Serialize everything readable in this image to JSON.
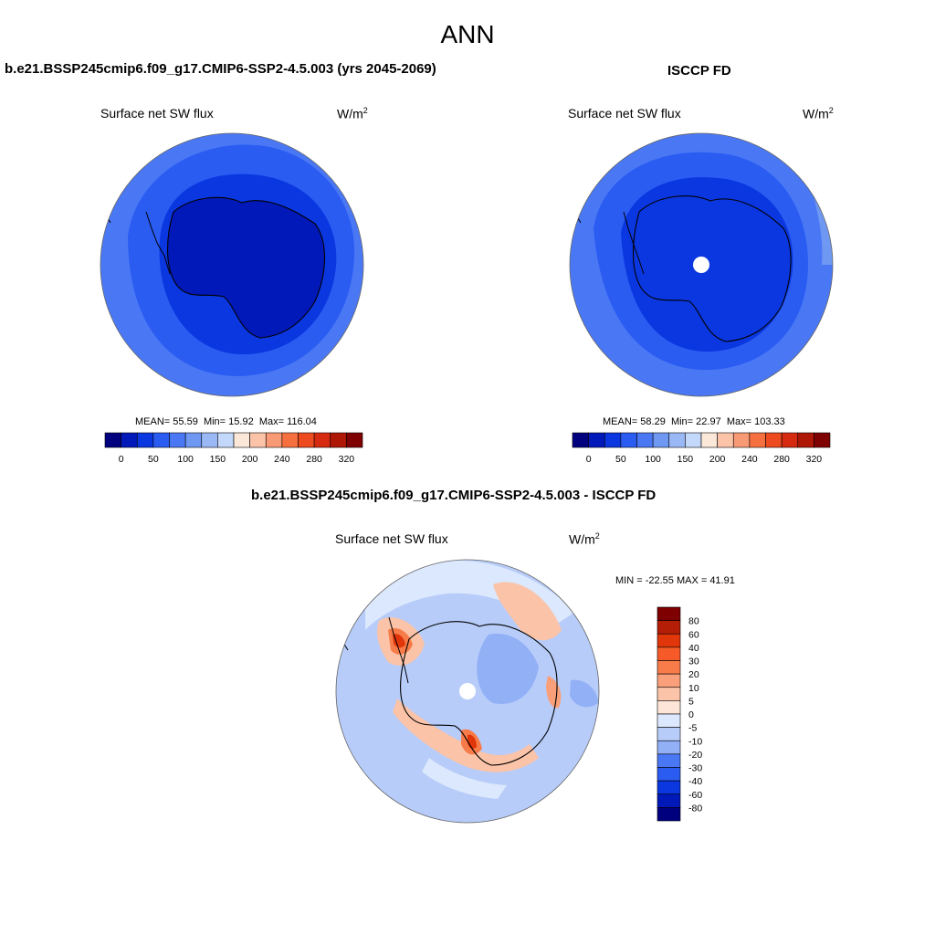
{
  "title": "ANN",
  "colors": {
    "hbar": [
      "#00007f",
      "#0019b8",
      "#0a37e0",
      "#2a5cf2",
      "#4a78f5",
      "#6f98f3",
      "#9ab8f6",
      "#c4d8fb",
      "#fbe8d8",
      "#fbc4a8",
      "#f99a76",
      "#f6703f",
      "#ee4a1f",
      "#d52a10",
      "#ae1605",
      "#7f0000"
    ],
    "vbar": [
      "#7f0000",
      "#b41e06",
      "#e0360a",
      "#f55a28",
      "#f77c4a",
      "#f9a07a",
      "#fbc3a8",
      "#fde6d8",
      "#dbe8fd",
      "#b7ccf9",
      "#92b0f6",
      "#4a78f5",
      "#2a5cf2",
      "#0a37e0",
      "#0019b8",
      "#00007f"
    ]
  },
  "panels": {
    "top_left": {
      "title": "b.e21.BSSP245cmip6.f09_g17.CMIP6-SSP2-4.5.003 (yrs 2045-2069)",
      "field": "Surface net SW flux",
      "unit": "W/m",
      "unit_exp": "2",
      "stats": {
        "mean_label": "MEAN=",
        "mean": "55.59",
        "min_label": "Min=",
        "min": "15.92",
        "max_label": "Max=",
        "max": "116.04"
      }
    },
    "top_right": {
      "title": "ISCCP FD",
      "field": "Surface net SW flux",
      "unit": "W/m",
      "unit_exp": "2",
      "stats": {
        "mean_label": "MEAN=",
        "mean": "58.29",
        "min_label": "Min=",
        "min": "22.97",
        "max_label": "Max=",
        "max": "103.33"
      }
    },
    "bottom": {
      "title": "b.e21.BSSP245cmip6.f09_g17.CMIP6-SSP2-4.5.003 - ISCCP FD",
      "field": "Surface net SW flux",
      "unit": "W/m",
      "unit_exp": "2",
      "minmax": "MIN = -22.55 MAX =  41.91"
    }
  },
  "colorbar_top": {
    "labels": [
      "0",
      "50",
      "100",
      "150",
      "200",
      "240",
      "280",
      "320"
    ]
  },
  "colorbar_diff": {
    "labels": [
      "80",
      "60",
      "40",
      "30",
      "20",
      "10",
      "5",
      "0",
      "-5",
      "-10",
      "-20",
      "-30",
      "-40",
      "-60",
      "-80"
    ]
  }
}
